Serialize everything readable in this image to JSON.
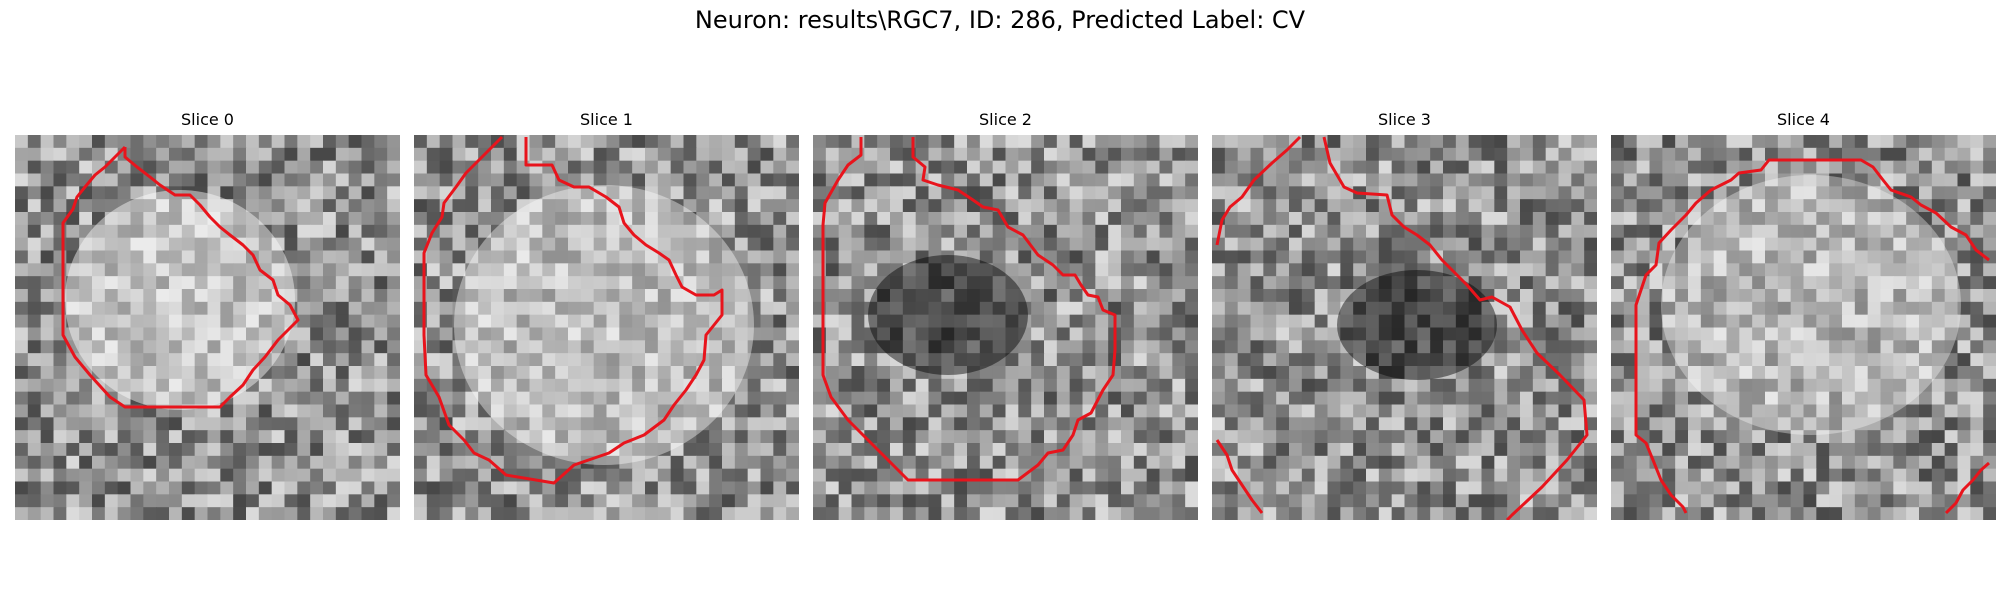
{
  "figure": {
    "title": "Neuron: results\\RGC7, ID: 286, Predicted Label: CV"
  },
  "panels": [
    {
      "title": "Slice 0"
    },
    {
      "title": "Slice 1"
    },
    {
      "title": "Slice 2"
    },
    {
      "title": "Slice 3"
    },
    {
      "title": "Slice 4"
    }
  ],
  "colors": {
    "contour": "#e8141c",
    "background": "#ffffff"
  }
}
